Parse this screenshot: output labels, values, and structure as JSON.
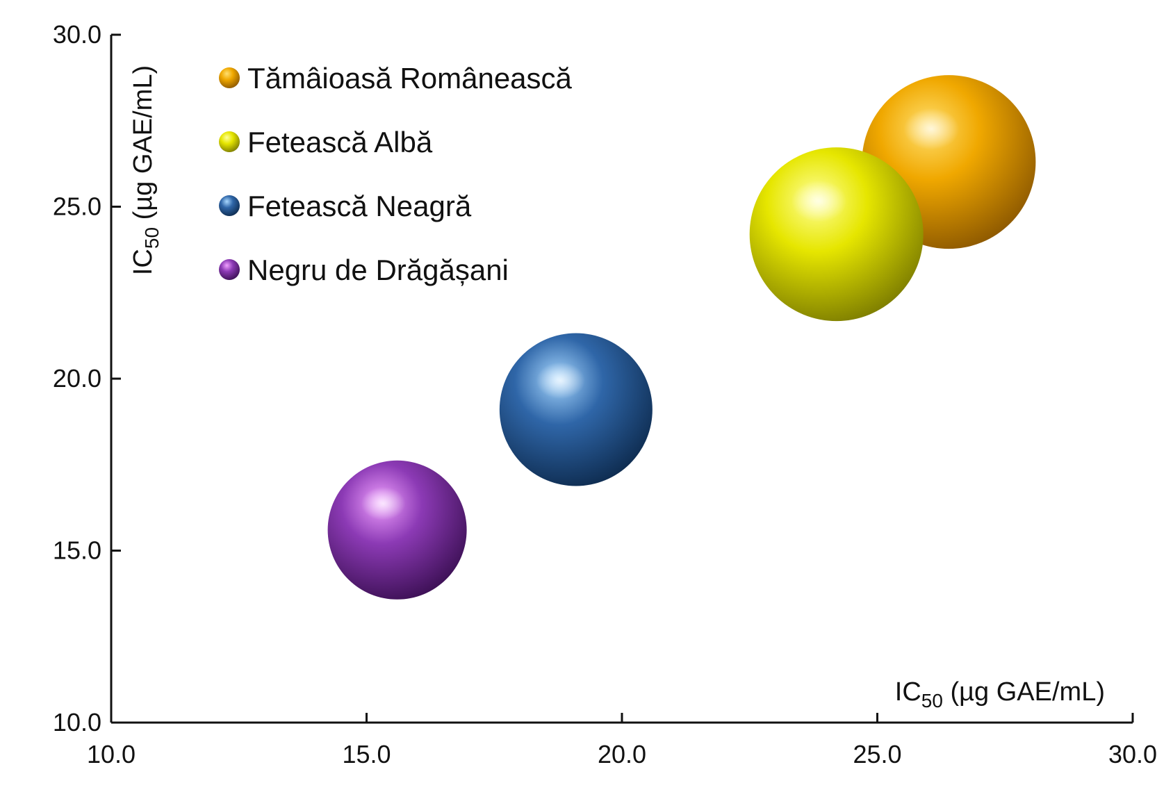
{
  "chart_data": {
    "type": "scatter",
    "title": "",
    "xlabel": {
      "prefix": "IC",
      "subscript": "50",
      "suffix": " (µg GAE/mL)"
    },
    "ylabel": {
      "prefix": "IC",
      "subscript": "50",
      "suffix": " (µg GAE/mL)"
    },
    "xlim": [
      10,
      30
    ],
    "ylim": [
      10,
      30
    ],
    "xticks": [
      "10.0",
      "15.0",
      "20.0",
      "25.0",
      "30.0"
    ],
    "yticks": [
      "10.0",
      "15.0",
      "20.0",
      "25.0",
      "30.0"
    ],
    "grid": false,
    "legend_position": "top-left",
    "series": [
      {
        "name": "Tămâioasă Românească",
        "x": 26.4,
        "y": 26.3,
        "size": 1.0,
        "color": "#f0a800",
        "highlight": "#ffe070",
        "shade": "#8a5600"
      },
      {
        "name": "Fetească Albă",
        "x": 24.2,
        "y": 24.2,
        "size": 1.0,
        "color": "#e6e600",
        "highlight": "#ffff9a",
        "shade": "#7a7a00"
      },
      {
        "name": "Fetească Neagră",
        "x": 19.1,
        "y": 19.1,
        "size": 0.88,
        "color": "#2f66a8",
        "highlight": "#a8d8ff",
        "shade": "#0d2a4d"
      },
      {
        "name": "Negru de Drăgășani",
        "x": 15.6,
        "y": 15.6,
        "size": 0.8,
        "color": "#8c3ab5",
        "highlight": "#f0a0ff",
        "shade": "#3a0f52"
      }
    ]
  }
}
